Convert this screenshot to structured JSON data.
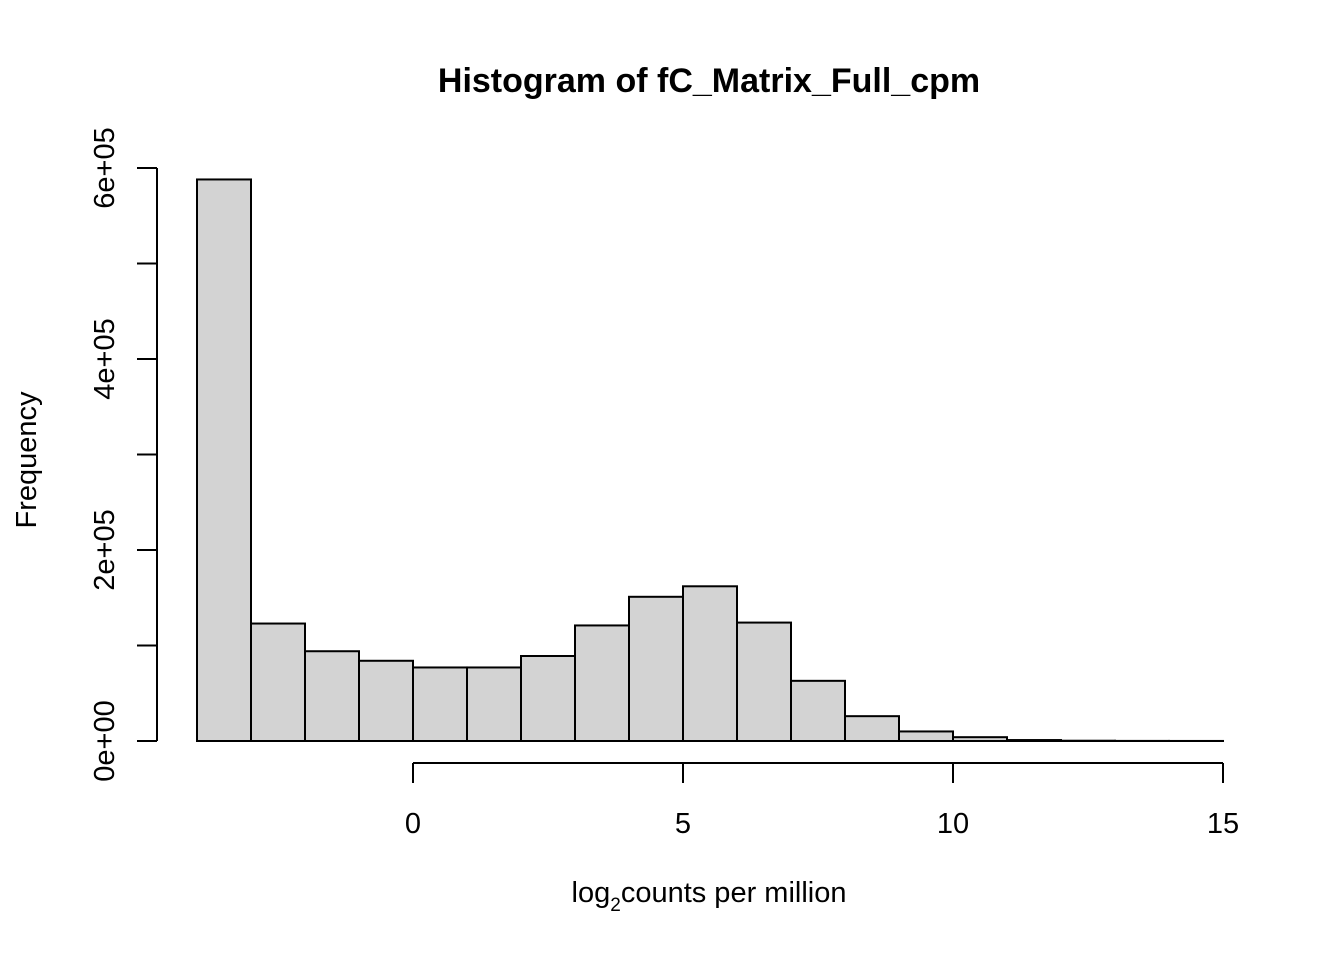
{
  "chart_data": {
    "type": "bar",
    "title": "Histogram of fC_Matrix_Full_cpm",
    "xlabel_base": "log",
    "xlabel_subscript": "2",
    "xlabel_rest": "counts per million",
    "ylabel": "Frequency",
    "bins": [
      {
        "start": -4,
        "end": -3,
        "count": 588000
      },
      {
        "start": -3,
        "end": -2,
        "count": 123000
      },
      {
        "start": -2,
        "end": -1,
        "count": 94000
      },
      {
        "start": -1,
        "end": 0,
        "count": 84000
      },
      {
        "start": 0,
        "end": 1,
        "count": 77000
      },
      {
        "start": 1,
        "end": 2,
        "count": 77000
      },
      {
        "start": 2,
        "end": 3,
        "count": 89000
      },
      {
        "start": 3,
        "end": 4,
        "count": 121000
      },
      {
        "start": 4,
        "end": 5,
        "count": 151000
      },
      {
        "start": 5,
        "end": 6,
        "count": 162000
      },
      {
        "start": 6,
        "end": 7,
        "count": 124000
      },
      {
        "start": 7,
        "end": 8,
        "count": 63000
      },
      {
        "start": 8,
        "end": 9,
        "count": 26000
      },
      {
        "start": 9,
        "end": 10,
        "count": 10000
      },
      {
        "start": 10,
        "end": 11,
        "count": 4000
      },
      {
        "start": 11,
        "end": 12,
        "count": 1000
      },
      {
        "start": 12,
        "end": 13,
        "count": 300
      },
      {
        "start": 13,
        "end": 14,
        "count": 100
      },
      {
        "start": 14,
        "end": 15,
        "count": 50
      }
    ],
    "x_ticks": [
      0,
      5,
      10,
      15
    ],
    "x_tick_labels": [
      "0",
      "5",
      "10",
      "15"
    ],
    "y_ticks": [
      0,
      100000,
      200000,
      300000,
      400000,
      500000,
      600000
    ],
    "y_tick_labels": [
      "0e+00",
      "",
      "2e+05",
      "",
      "4e+05",
      "",
      "6e+05"
    ],
    "xlim": [
      -4,
      15
    ],
    "ylim": [
      0,
      600000
    ],
    "bar_fill": "#d3d3d3",
    "bar_stroke": "#000000"
  }
}
